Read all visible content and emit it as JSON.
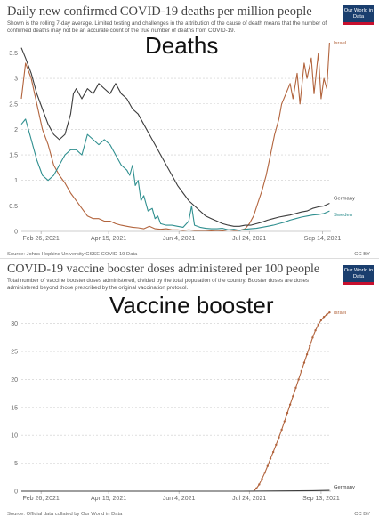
{
  "colors": {
    "israel": "#b2643d",
    "germany": "#3c3c3c",
    "sweden": "#2f8f8f",
    "brand": "#1a3e6e",
    "grid": "#cccccc"
  },
  "charts": [
    {
      "id": "deaths",
      "overlay_label": "Deaths",
      "source": "Source: Johns Hopkins University CSSE COVID-19 Data",
      "license": "CC BY"
    },
    {
      "id": "booster",
      "overlay_label": "Vaccine booster",
      "source": "Source: Official data collated by Our World in Data",
      "license": "CC BY"
    }
  ],
  "logo_text": "Our World in Data",
  "chart_data": [
    {
      "type": "line",
      "title": "Daily new confirmed COVID-19 deaths per million people",
      "subtitle": "Shown is the rolling 7-day average. Limited testing and challenges in the attribution of the cause of death means that the number of confirmed deaths may not be an accurate count of the true number of deaths from COVID-19.",
      "x_ticks": [
        "Feb 26, 2021",
        "Apr 15, 2021",
        "Jun 4, 2021",
        "Jul 24, 2021",
        "Sep 14, 2021"
      ],
      "x_tick_days": [
        57,
        105,
        155,
        205,
        257
      ],
      "x_range": [
        43,
        263
      ],
      "y_ticks": [
        "0",
        "0.5",
        "1",
        "1.5",
        "2",
        "2.5",
        "3",
        "3.5"
      ],
      "ylim": [
        0,
        3.7
      ],
      "series": [
        {
          "name": "Israel",
          "color_key": "israel",
          "points": [
            [
              43,
              2.6
            ],
            [
              46,
              3.3
            ],
            [
              50,
              3.0
            ],
            [
              54,
              2.5
            ],
            [
              58,
              2.0
            ],
            [
              62,
              1.7
            ],
            [
              66,
              1.3
            ],
            [
              70,
              1.1
            ],
            [
              74,
              0.95
            ],
            [
              78,
              0.75
            ],
            [
              82,
              0.6
            ],
            [
              86,
              0.45
            ],
            [
              90,
              0.3
            ],
            [
              94,
              0.25
            ],
            [
              98,
              0.25
            ],
            [
              102,
              0.2
            ],
            [
              106,
              0.2
            ],
            [
              110,
              0.15
            ],
            [
              114,
              0.12
            ],
            [
              118,
              0.1
            ],
            [
              122,
              0.08
            ],
            [
              126,
              0.07
            ],
            [
              130,
              0.05
            ],
            [
              134,
              0.1
            ],
            [
              138,
              0.05
            ],
            [
              142,
              0.04
            ],
            [
              146,
              0.05
            ],
            [
              150,
              0.03
            ],
            [
              154,
              0.03
            ],
            [
              158,
              0.02
            ],
            [
              162,
              0.03
            ],
            [
              166,
              0.02
            ],
            [
              170,
              0.02
            ],
            [
              174,
              0.02
            ],
            [
              178,
              0.01
            ],
            [
              182,
              0.02
            ],
            [
              186,
              0.01
            ],
            [
              190,
              0.03
            ],
            [
              194,
              0.02
            ],
            [
              198,
              0.02
            ],
            [
              202,
              0.05
            ],
            [
              205,
              0.15
            ],
            [
              208,
              0.3
            ],
            [
              211,
              0.55
            ],
            [
              214,
              0.8
            ],
            [
              217,
              1.1
            ],
            [
              220,
              1.5
            ],
            [
              223,
              1.9
            ],
            [
              226,
              2.2
            ],
            [
              228,
              2.5
            ],
            [
              231,
              2.7
            ],
            [
              234,
              2.9
            ],
            [
              236,
              2.6
            ],
            [
              239,
              3.1
            ],
            [
              241,
              2.5
            ],
            [
              244,
              3.3
            ],
            [
              246,
              3.0
            ],
            [
              249,
              3.4
            ],
            [
              251,
              2.7
            ],
            [
              254,
              3.5
            ],
            [
              256,
              2.6
            ],
            [
              258,
              3.0
            ],
            [
              260,
              2.8
            ],
            [
              262,
              3.7
            ]
          ]
        },
        {
          "name": "Germany",
          "color_key": "germany",
          "points": [
            [
              43,
              3.6
            ],
            [
              46,
              3.4
            ],
            [
              50,
              3.1
            ],
            [
              54,
              2.7
            ],
            [
              58,
              2.4
            ],
            [
              62,
              2.1
            ],
            [
              66,
              1.9
            ],
            [
              70,
              1.8
            ],
            [
              74,
              1.9
            ],
            [
              78,
              2.3
            ],
            [
              80,
              2.7
            ],
            [
              82,
              2.8
            ],
            [
              86,
              2.6
            ],
            [
              90,
              2.8
            ],
            [
              94,
              2.7
            ],
            [
              98,
              2.9
            ],
            [
              102,
              2.8
            ],
            [
              106,
              2.7
            ],
            [
              110,
              2.9
            ],
            [
              114,
              2.7
            ],
            [
              118,
              2.6
            ],
            [
              122,
              2.4
            ],
            [
              126,
              2.3
            ],
            [
              130,
              2.1
            ],
            [
              134,
              1.9
            ],
            [
              138,
              1.7
            ],
            [
              142,
              1.5
            ],
            [
              146,
              1.3
            ],
            [
              150,
              1.1
            ],
            [
              154,
              0.9
            ],
            [
              158,
              0.75
            ],
            [
              162,
              0.6
            ],
            [
              166,
              0.5
            ],
            [
              170,
              0.4
            ],
            [
              174,
              0.3
            ],
            [
              178,
              0.25
            ],
            [
              182,
              0.2
            ],
            [
              186,
              0.15
            ],
            [
              190,
              0.12
            ],
            [
              194,
              0.1
            ],
            [
              198,
              0.1
            ],
            [
              202,
              0.12
            ],
            [
              206,
              0.12
            ],
            [
              210,
              0.15
            ],
            [
              214,
              0.18
            ],
            [
              218,
              0.22
            ],
            [
              222,
              0.25
            ],
            [
              226,
              0.28
            ],
            [
              230,
              0.3
            ],
            [
              234,
              0.32
            ],
            [
              238,
              0.35
            ],
            [
              242,
              0.38
            ],
            [
              246,
              0.4
            ],
            [
              250,
              0.45
            ],
            [
              254,
              0.48
            ],
            [
              258,
              0.5
            ],
            [
              262,
              0.55
            ]
          ]
        },
        {
          "name": "Sweden",
          "color_key": "sweden",
          "points": [
            [
              43,
              2.1
            ],
            [
              46,
              2.2
            ],
            [
              50,
              1.8
            ],
            [
              54,
              1.4
            ],
            [
              58,
              1.1
            ],
            [
              62,
              1.0
            ],
            [
              66,
              1.1
            ],
            [
              70,
              1.3
            ],
            [
              74,
              1.5
            ],
            [
              78,
              1.6
            ],
            [
              82,
              1.6
            ],
            [
              86,
              1.5
            ],
            [
              90,
              1.9
            ],
            [
              94,
              1.8
            ],
            [
              98,
              1.7
            ],
            [
              102,
              1.8
            ],
            [
              106,
              1.7
            ],
            [
              110,
              1.5
            ],
            [
              114,
              1.3
            ],
            [
              118,
              1.2
            ],
            [
              120,
              1.1
            ],
            [
              122,
              1.3
            ],
            [
              124,
              0.9
            ],
            [
              126,
              1.0
            ],
            [
              128,
              0.6
            ],
            [
              130,
              0.7
            ],
            [
              133,
              0.4
            ],
            [
              136,
              0.45
            ],
            [
              138,
              0.25
            ],
            [
              140,
              0.3
            ],
            [
              142,
              0.15
            ],
            [
              146,
              0.12
            ],
            [
              150,
              0.12
            ],
            [
              154,
              0.1
            ],
            [
              158,
              0.08
            ],
            [
              162,
              0.2
            ],
            [
              164,
              0.5
            ],
            [
              166,
              0.12
            ],
            [
              170,
              0.08
            ],
            [
              174,
              0.06
            ],
            [
              178,
              0.05
            ],
            [
              182,
              0.05
            ],
            [
              186,
              0.06
            ],
            [
              190,
              0.03
            ],
            [
              194,
              0.04
            ],
            [
              198,
              0.02
            ],
            [
              202,
              0.04
            ],
            [
              206,
              0.05
            ],
            [
              210,
              0.06
            ],
            [
              214,
              0.08
            ],
            [
              218,
              0.1
            ],
            [
              222,
              0.12
            ],
            [
              226,
              0.15
            ],
            [
              230,
              0.18
            ],
            [
              234,
              0.22
            ],
            [
              238,
              0.25
            ],
            [
              242,
              0.28
            ],
            [
              246,
              0.3
            ],
            [
              250,
              0.32
            ],
            [
              254,
              0.33
            ],
            [
              258,
              0.35
            ],
            [
              262,
              0.4
            ]
          ]
        }
      ]
    },
    {
      "type": "line",
      "title": "COVID-19 vaccine booster doses administered per 100 people",
      "subtitle": "Total number of vaccine booster doses administered, divided by the total population of the country. Booster doses are doses administered beyond those prescribed by the original vaccination protocol.",
      "x_ticks": [
        "Feb 26, 2021",
        "Apr 15, 2021",
        "Jun 4, 2021",
        "Jul 24, 2021",
        "Sep 13, 2021"
      ],
      "x_tick_days": [
        57,
        105,
        155,
        205,
        256
      ],
      "x_range": [
        43,
        263
      ],
      "y_ticks": [
        "0",
        "5",
        "10",
        "15",
        "20",
        "25",
        "30"
      ],
      "ylim": [
        0,
        32.5
      ],
      "series": [
        {
          "name": "Israel",
          "color_key": "israel",
          "markers": true,
          "points": [
            [
              43,
              0
            ],
            [
              60,
              0
            ],
            [
              80,
              0
            ],
            [
              100,
              0
            ],
            [
              120,
              0
            ],
            [
              140,
              0
            ],
            [
              160,
              0
            ],
            [
              180,
              0
            ],
            [
              200,
              0
            ],
            [
              208,
              0
            ],
            [
              210,
              0.5
            ],
            [
              212,
              1.2
            ],
            [
              214,
              2.2
            ],
            [
              216,
              3.3
            ],
            [
              218,
              4.5
            ],
            [
              220,
              5.8
            ],
            [
              222,
              7.0
            ],
            [
              224,
              8.3
            ],
            [
              226,
              9.6
            ],
            [
              228,
              11.0
            ],
            [
              230,
              12.5
            ],
            [
              232,
              14.0
            ],
            [
              234,
              15.5
            ],
            [
              236,
              17.0
            ],
            [
              238,
              18.5
            ],
            [
              240,
              20.0
            ],
            [
              242,
              21.5
            ],
            [
              244,
              23.0
            ],
            [
              246,
              24.5
            ],
            [
              248,
              26.0
            ],
            [
              250,
              27.5
            ],
            [
              252,
              28.8
            ],
            [
              254,
              29.8
            ],
            [
              256,
              30.6
            ],
            [
              258,
              31.2
            ],
            [
              260,
              31.6
            ],
            [
              262,
              32.0
            ]
          ]
        },
        {
          "name": "Germany",
          "color_key": "germany",
          "points": [
            [
              43,
              0
            ],
            [
              100,
              0
            ],
            [
              150,
              0
            ],
            [
              200,
              0
            ],
            [
              230,
              0.05
            ],
            [
              250,
              0.1
            ],
            [
              262,
              0.15
            ]
          ]
        }
      ]
    }
  ]
}
